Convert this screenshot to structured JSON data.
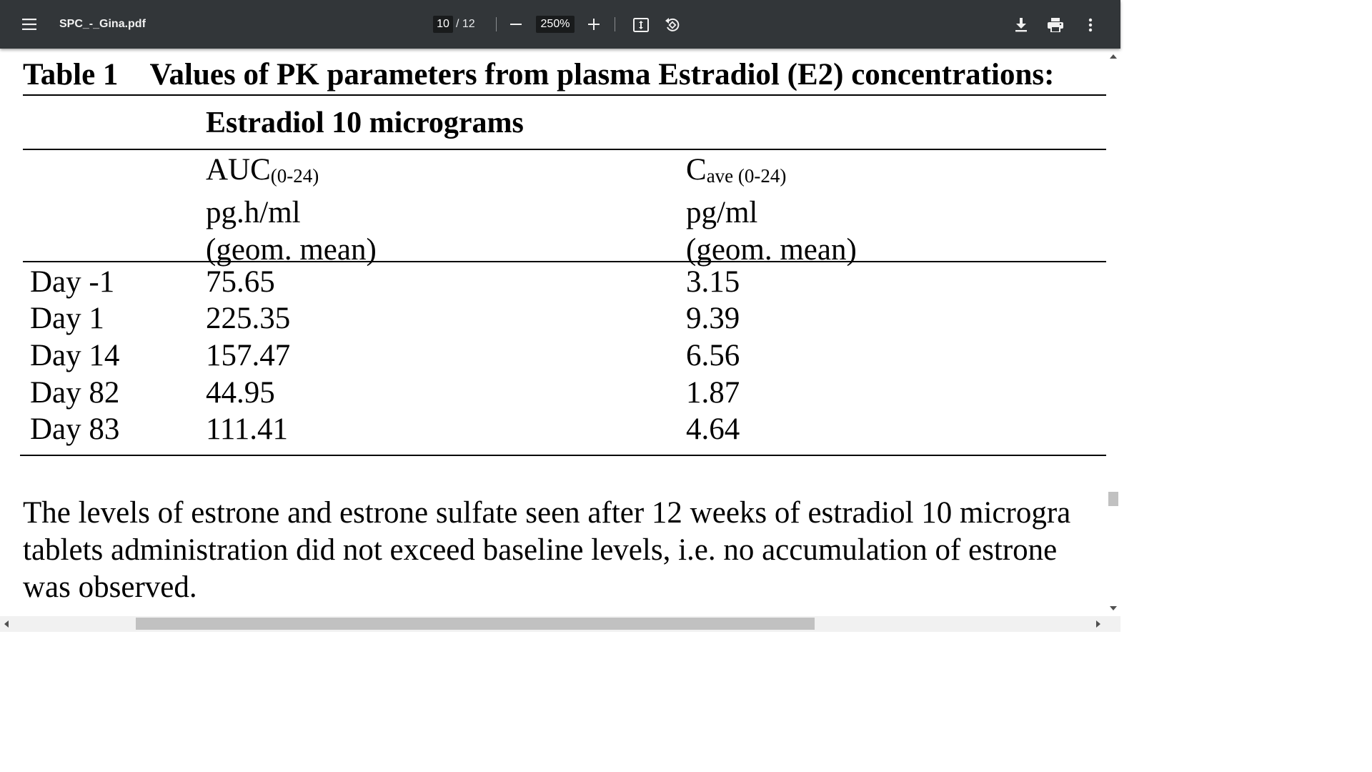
{
  "toolbar": {
    "menu_icon": "hamburger-menu-icon",
    "file_name": "SPC_-_Gina.pdf",
    "current_page": "10",
    "page_separator": "/ 12",
    "zoom_value": "250%",
    "icons": [
      "minus-icon",
      "plus-icon",
      "fit-page-icon",
      "rotate-icon",
      "download-icon",
      "print-icon",
      "more-vert-icon"
    ],
    "background": "#323639"
  },
  "document": {
    "table_label": "Table 1",
    "table_title": "Values of PK parameters from plasma Estradiol (E2) concentrations:",
    "subtitle": "Estradiol 10 micrograms",
    "columns": [
      {
        "main": "AUC",
        "sub": "(0-24)",
        "unit": "pg.h/ml",
        "note": "(geom. mean)"
      },
      {
        "main": "C",
        "sub": "ave (0-24)",
        "unit": "pg/ml",
        "note": "(geom. mean)"
      }
    ],
    "rows": [
      {
        "day": "Day -1",
        "auc": "75.65",
        "cave": "3.15"
      },
      {
        "day": "Day 1",
        "auc": "225.35",
        "cave": "9.39"
      },
      {
        "day": "Day 14",
        "auc": "157.47",
        "cave": "6.56"
      },
      {
        "day": "Day 82",
        "auc": "44.95",
        "cave": "1.87"
      },
      {
        "day": "Day 83",
        "auc": "111.41",
        "cave": "4.64"
      }
    ],
    "paragraph": [
      "The levels of estrone and estrone sulfate seen after 12 weeks of estradiol 10 microgra",
      "tablets administration did not exceed baseline levels, i.e. no accumulation of estrone",
      "was observed."
    ]
  }
}
